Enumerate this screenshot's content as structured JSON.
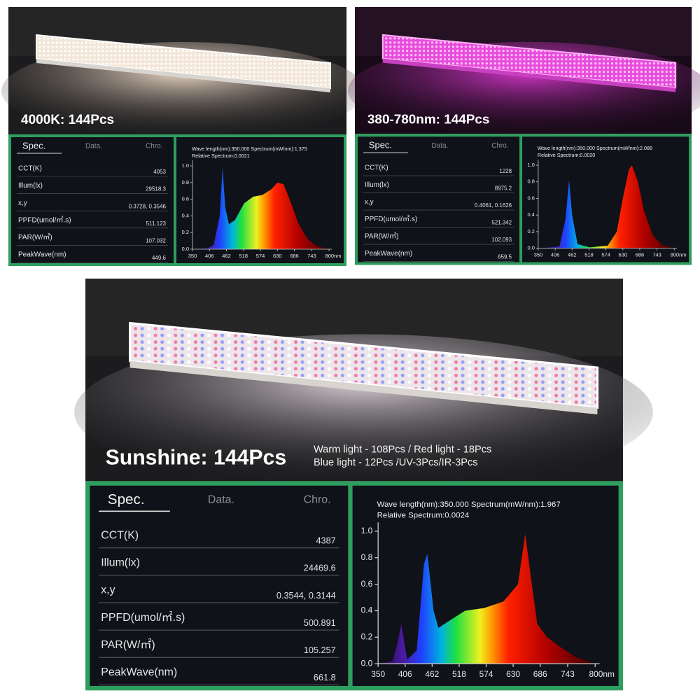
{
  "panels": [
    {
      "caption": "4000K: 144Pcs",
      "spec": {
        "header": [
          "Spec.",
          "Data.",
          "Chro."
        ],
        "rows": [
          {
            "label": "CCT(K)",
            "value": "4053"
          },
          {
            "label": "Illum(lx)",
            "value": "29518.3"
          },
          {
            "label": "x,y",
            "value": "0.3728, 0.3546"
          },
          {
            "label": "PPFD(umol/㎡.s)",
            "value": "511.123"
          },
          {
            "label": "PAR(W/㎡)",
            "value": "107.032"
          },
          {
            "label": "PeakWave(nm)",
            "value": "449.6"
          }
        ]
      }
    },
    {
      "caption": "380-780nm: 144Pcs",
      "spec": {
        "header": [
          "Spec.",
          "Data.",
          "Chro."
        ],
        "rows": [
          {
            "label": "CCT(K)",
            "value": "1228"
          },
          {
            "label": "Illum(lx)",
            "value": "8975.2"
          },
          {
            "label": "x,y",
            "value": "0.4061, 0.1626"
          },
          {
            "label": "PPFD(umol/㎡.s)",
            "value": "521.342"
          },
          {
            "label": "PAR(W/㎡)",
            "value": "102.093"
          },
          {
            "label": "PeakWave(nm)",
            "value": "659.5"
          }
        ]
      }
    },
    {
      "caption": "Sunshine: 144Pcs",
      "subtitle": [
        "Warm light - 108Pcs / Red light - 18Pcs",
        "Blue light - 12Pcs /UV-3Pcs/IR-3Pcs"
      ],
      "spec": {
        "header": [
          "Spec.",
          "Data.",
          "Chro."
        ],
        "rows": [
          {
            "label": "CCT(K)",
            "value": "4387"
          },
          {
            "label": "Illum(lx)",
            "value": "24469.6"
          },
          {
            "label": "x,y",
            "value": "0.3544, 0.3144"
          },
          {
            "label": "PPFD(umol/㎡.s)",
            "value": "500.891"
          },
          {
            "label": "PAR(W/㎡)",
            "value": "105.257"
          },
          {
            "label": "PeakWave(nm)",
            "value": "661.8"
          }
        ]
      }
    }
  ],
  "chart_data": [
    {
      "type": "area",
      "header": [
        "Wave length(nm):350.000  Spectrum(mW/nm):1.375",
        "Relative Spectrum:0.0021"
      ],
      "x": [
        350,
        400,
        420,
        440,
        449,
        458,
        470,
        490,
        520,
        550,
        580,
        610,
        630,
        650,
        670,
        700,
        730,
        760,
        800
      ],
      "values": [
        0,
        0.01,
        0.05,
        0.4,
        0.98,
        0.5,
        0.3,
        0.35,
        0.55,
        0.63,
        0.65,
        0.72,
        0.8,
        0.78,
        0.6,
        0.3,
        0.12,
        0.04,
        0
      ],
      "xlim": [
        350,
        800
      ],
      "ylim": [
        0,
        1.05
      ],
      "xticks": [
        350,
        406,
        462,
        518,
        574,
        630,
        686,
        743,
        {
          "value": 800,
          "label": "800nm"
        }
      ],
      "yticks": [
        {
          "value": 0,
          "label": "0.0"
        },
        0.2,
        0.4,
        0.6,
        0.8,
        {
          "value": 1,
          "label": "1.0"
        }
      ]
    },
    {
      "type": "area",
      "header": [
        "Wave length(nm):350.000  Spectrum(mW/nm):2.088",
        "Relative Spectrum:0.0020"
      ],
      "x": [
        350,
        420,
        440,
        452,
        462,
        480,
        520,
        580,
        610,
        630,
        650,
        660,
        680,
        700,
        730,
        760,
        800
      ],
      "values": [
        0,
        0.02,
        0.35,
        0.82,
        0.4,
        0.05,
        0.01,
        0.03,
        0.2,
        0.6,
        0.95,
        1.0,
        0.8,
        0.45,
        0.15,
        0.04,
        0
      ],
      "xlim": [
        350,
        800
      ],
      "ylim": [
        0,
        1.05
      ],
      "xticks": [
        350,
        406,
        462,
        518,
        574,
        630,
        686,
        743,
        {
          "value": 800,
          "label": "800nm"
        }
      ],
      "yticks": [
        {
          "value": 0,
          "label": "0.0"
        },
        0.2,
        0.4,
        0.6,
        0.8,
        {
          "value": 1,
          "label": "1.0"
        }
      ]
    },
    {
      "type": "area",
      "header": [
        "Wave length(nm):350.000  Spectrum(mW/nm):1.967",
        "Relative Spectrum:0.0024"
      ],
      "x": [
        350,
        380,
        390,
        398,
        410,
        430,
        445,
        452,
        465,
        475,
        500,
        530,
        570,
        610,
        640,
        655,
        665,
        680,
        700,
        730,
        760,
        800
      ],
      "values": [
        0,
        0.02,
        0.15,
        0.3,
        0.03,
        0.1,
        0.75,
        0.83,
        0.4,
        0.27,
        0.33,
        0.4,
        0.42,
        0.47,
        0.6,
        0.98,
        0.7,
        0.3,
        0.2,
        0.12,
        0.05,
        0
      ],
      "xlim": [
        350,
        800
      ],
      "ylim": [
        0,
        1.05
      ],
      "xticks": [
        350,
        406,
        462,
        518,
        574,
        630,
        686,
        743,
        {
          "value": 800,
          "label": "800nm"
        }
      ],
      "yticks": [
        {
          "value": 0,
          "label": "0.0"
        },
        0.2,
        0.4,
        0.6,
        0.8,
        {
          "value": 1,
          "label": "1.0"
        }
      ]
    }
  ]
}
